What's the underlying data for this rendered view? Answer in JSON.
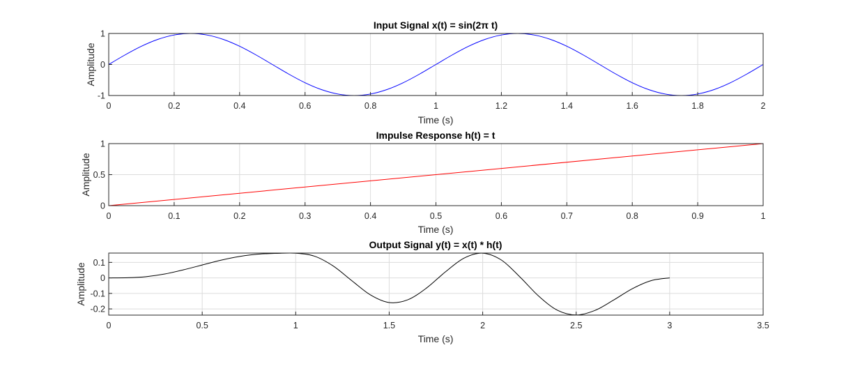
{
  "chart_data": [
    {
      "type": "line",
      "title": "Input Signal x(t) = sin(2π t)",
      "xlabel": "Time (s)",
      "ylabel": "Amplitude",
      "xlim": [
        0,
        2
      ],
      "ylim": [
        -1,
        1
      ],
      "xticks": [
        0,
        0.2,
        0.4,
        0.6,
        0.8,
        1,
        1.2,
        1.4,
        1.6,
        1.8,
        2
      ],
      "xtick_labels": [
        "0",
        "0.2",
        "0.4",
        "0.6",
        "0.8",
        "1",
        "1.2",
        "1.4",
        "1.6",
        "1.8",
        "2"
      ],
      "yticks": [
        -1,
        0,
        1
      ],
      "ytick_labels": [
        "-1",
        "0",
        "1"
      ],
      "grid": true,
      "series": [
        {
          "color": "#0000ff",
          "x": [
            0,
            0.05,
            0.1,
            0.15,
            0.2,
            0.25,
            0.3,
            0.35,
            0.4,
            0.45,
            0.5,
            0.55,
            0.6,
            0.65,
            0.7,
            0.75,
            0.8,
            0.85,
            0.9,
            0.95,
            1,
            1.05,
            1.1,
            1.15,
            1.2,
            1.25,
            1.3,
            1.35,
            1.4,
            1.45,
            1.5,
            1.55,
            1.6,
            1.65,
            1.7,
            1.75,
            1.8,
            1.85,
            1.9,
            1.95,
            2
          ],
          "y": [
            0,
            0.309,
            0.588,
            0.809,
            0.951,
            1,
            0.951,
            0.809,
            0.588,
            0.309,
            0,
            -0.309,
            -0.588,
            -0.809,
            -0.951,
            -1,
            -0.951,
            -0.809,
            -0.588,
            -0.309,
            0,
            0.309,
            0.588,
            0.809,
            0.951,
            1,
            0.951,
            0.809,
            0.588,
            0.309,
            0,
            -0.309,
            -0.588,
            -0.809,
            -0.951,
            -1,
            -0.951,
            -0.809,
            -0.588,
            -0.309,
            0
          ]
        }
      ]
    },
    {
      "type": "line",
      "title": "Impulse Response h(t) = t",
      "xlabel": "Time (s)",
      "ylabel": "Amplitude",
      "xlim": [
        0,
        1
      ],
      "ylim": [
        0,
        1
      ],
      "xticks": [
        0,
        0.1,
        0.2,
        0.3,
        0.4,
        0.5,
        0.6,
        0.7,
        0.8,
        0.9,
        1
      ],
      "xtick_labels": [
        "0",
        "0.1",
        "0.2",
        "0.3",
        "0.4",
        "0.5",
        "0.6",
        "0.7",
        "0.8",
        "0.9",
        "1"
      ],
      "yticks": [
        0,
        0.5,
        1
      ],
      "ytick_labels": [
        "0",
        "0.5",
        "1"
      ],
      "grid": true,
      "series": [
        {
          "color": "#ff0000",
          "x": [
            0,
            1
          ],
          "y": [
            0,
            1
          ]
        }
      ]
    },
    {
      "type": "line",
      "title": "Output Signal y(t) = x(t) * h(t)",
      "xlabel": "Time (s)",
      "ylabel": "Amplitude",
      "xlim": [
        0,
        3.5
      ],
      "ylim": [
        -0.24,
        0.16
      ],
      "xticks": [
        0,
        0.5,
        1,
        1.5,
        2,
        2.5,
        3,
        3.5
      ],
      "xtick_labels": [
        "0",
        "0.5",
        "1",
        "1.5",
        "2",
        "2.5",
        "3",
        "3.5"
      ],
      "yticks": [
        -0.2,
        -0.1,
        0,
        0.1
      ],
      "ytick_labels": [
        "-0.2",
        "-0.1",
        "0",
        "0.1"
      ],
      "grid": true,
      "series": [
        {
          "color": "#000000",
          "x": [
            0,
            0.1,
            0.2,
            0.3,
            0.4,
            0.5,
            0.6,
            0.7,
            0.8,
            0.9,
            1,
            1.1,
            1.2,
            1.3,
            1.4,
            1.5,
            1.6,
            1.7,
            1.8,
            1.9,
            2,
            2.1,
            2.2,
            2.3,
            2.4,
            2.5,
            2.6,
            2.7,
            2.8,
            2.9,
            3
          ],
          "y": [
            0,
            0.001,
            0.008,
            0.025,
            0.052,
            0.083,
            0.114,
            0.138,
            0.153,
            0.158,
            0.159,
            0.14,
            0.077,
            -0.018,
            -0.11,
            -0.159,
            -0.141,
            -0.065,
            0.038,
            0.127,
            0.159,
            0.115,
            0.005,
            -0.118,
            -0.209,
            -0.239,
            -0.21,
            -0.143,
            -0.07,
            -0.018,
            0
          ]
        }
      ]
    }
  ]
}
